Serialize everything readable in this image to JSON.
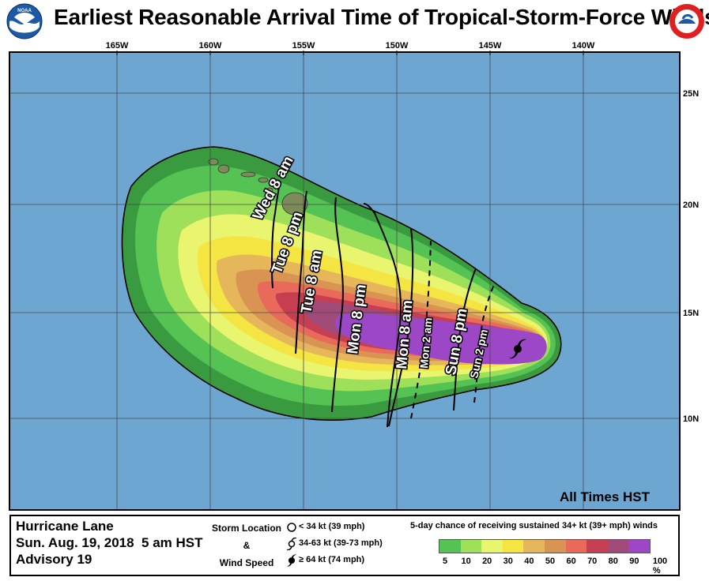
{
  "header": {
    "title": "Earliest Reasonable Arrival Time of Tropical-Storm-Force Winds",
    "left_logo": "NOAA",
    "right_logo": "NATIONAL WEATHER SERVICE"
  },
  "map": {
    "longitude_labels": [
      "165W",
      "160W",
      "155W",
      "150W",
      "145W",
      "140W"
    ],
    "latitude_labels": [
      "25N",
      "20N",
      "15N",
      "10N"
    ],
    "time_labels": [
      {
        "text": "Wed 8 am",
        "style": "solid"
      },
      {
        "text": "Tue 8 pm",
        "style": "solid"
      },
      {
        "text": "Tue 8 am",
        "style": "solid"
      },
      {
        "text": "Mon 8 pm",
        "style": "solid"
      },
      {
        "text": "Mon 8 am",
        "style": "solid"
      },
      {
        "text": "Mon 2 am",
        "style": "dashed"
      },
      {
        "text": "Sun 8 pm",
        "style": "solid"
      },
      {
        "text": "Sun 2 pm",
        "style": "dashed"
      }
    ],
    "storm_symbol": "hurricane-icon",
    "all_times_note": "All Times HST"
  },
  "legend": {
    "storm_name": "Hurricane Lane",
    "datetime": "Sun. Aug. 19, 2018  5 am HST",
    "advisory": "Advisory 19",
    "storm_location_label": "Storm Location",
    "ampersand": "&",
    "wind_speed_label": "Wind Speed",
    "keys": [
      {
        "icon": "circle-icon",
        "text": "< 34 kt (39 mph)"
      },
      {
        "icon": "tropical-storm-icon",
        "text": "34-63 kt (39-73 mph)"
      },
      {
        "icon": "hurricane-icon",
        "text": "≥ 64 kt (74 mph)"
      }
    ],
    "scale_title": "5-day chance of receiving sustained 34+ kt (39+ mph) winds",
    "scale_values": [
      "5",
      "10",
      "20",
      "30",
      "40",
      "50",
      "60",
      "70",
      "80",
      "90",
      "100 %"
    ],
    "scale_colors": [
      "#3a9a3f",
      "#54c354",
      "#9fe05a",
      "#e9f56f",
      "#f4e542",
      "#e5b75a",
      "#d99454",
      "#e96a5a",
      "#c63e52",
      "#a04a7a",
      "#9b47c6"
    ]
  }
}
